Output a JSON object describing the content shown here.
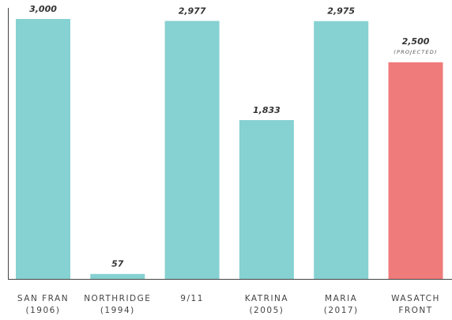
{
  "chart_data": {
    "type": "bar",
    "categories": [
      [
        "SAN FRAN",
        "(1906)"
      ],
      [
        "NORTHRIDGE",
        "(1994)"
      ],
      [
        "9/11"
      ],
      [
        "KATRINA",
        "(2005)"
      ],
      [
        "MARIA",
        "(2017)"
      ],
      [
        "WASATCH",
        "FRONT"
      ]
    ],
    "values": [
      3000,
      57,
      2977,
      1833,
      2975,
      2500
    ],
    "value_labels": [
      "3,000",
      "57",
      "2,977",
      "1,833",
      "2,975",
      "2,500"
    ],
    "colors": [
      "#86d1d2",
      "#86d1d2",
      "#86d1d2",
      "#86d1d2",
      "#86d1d2",
      "#f07b7b"
    ],
    "annotation": "(PROJECTED)",
    "ylim": [
      0,
      3000
    ]
  }
}
